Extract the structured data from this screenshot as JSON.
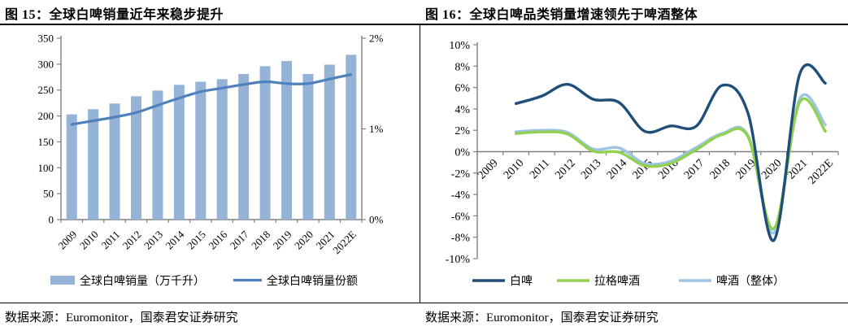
{
  "panels": [
    {
      "title": "图 15：全球白啤销量近年来稳步提升",
      "source": "数据来源：Euromonitor，国泰君安证券研究"
    },
    {
      "title": "图 16：全球白啤品类销量增速领先于啤酒整体",
      "source": "数据来源：Euromonitor，国泰君安证券研究"
    }
  ],
  "chart_data": [
    {
      "type": "bar",
      "title": "全球白啤销量近年来稳步提升",
      "categories": [
        "2009",
        "2010",
        "2011",
        "2012",
        "2013",
        "2014",
        "2015",
        "2016",
        "2017",
        "2018",
        "2019",
        "2020",
        "2021",
        "2022E"
      ],
      "series": [
        {
          "name": "全球白啩销量（万千升）",
          "kind": "bar",
          "axis": "left",
          "color": "#95B3D7",
          "values": [
            203,
            213,
            224,
            238,
            249,
            260,
            266,
            271,
            281,
            296,
            306,
            281,
            299,
            318
          ]
        },
        {
          "name": "全球白啤销量份额",
          "kind": "line",
          "axis": "right",
          "color": "#4F81BD",
          "values": [
            1.05,
            1.09,
            1.13,
            1.18,
            1.26,
            1.34,
            1.41,
            1.45,
            1.49,
            1.52,
            1.5,
            1.5,
            1.55,
            1.6
          ]
        }
      ],
      "legend": [
        {
          "label": "全球白啤销量（万千升）",
          "swatch": "bar",
          "color": "#95B3D7"
        },
        {
          "label": "全球白啤销量份额",
          "swatch": "line",
          "color": "#4F81BD"
        }
      ],
      "left_axis": {
        "min": 0,
        "max": 350,
        "tick_labels": [
          "350",
          "300",
          "250",
          "200",
          "150",
          "100",
          "50",
          "0"
        ]
      },
      "right_axis": {
        "min": 0,
        "max": 2,
        "tick_labels": [
          "2%",
          "1%",
          "0%"
        ]
      },
      "axis_color": "#808080",
      "legend_position": "bottom",
      "grid": false
    },
    {
      "type": "line",
      "title": "全球白啤品类销量增速领先于啤酒整体",
      "categories": [
        "2009",
        "2010",
        "2011",
        "2012",
        "2013",
        "2014",
        "2015",
        "2016",
        "2017",
        "2018",
        "2019",
        "2020",
        "2021",
        "2022E"
      ],
      "series": [
        {
          "name": "白啤",
          "color": "#1F4E79",
          "values": [
            null,
            4.5,
            5.2,
            6.3,
            4.9,
            4.6,
            1.9,
            2.4,
            2.4,
            6.2,
            3.6,
            -8.3,
            7.2,
            6.4
          ]
        },
        {
          "name": "拉格啤酒",
          "color": "#92D050",
          "values": [
            null,
            1.7,
            1.85,
            1.65,
            0.05,
            -0.05,
            -1.3,
            -1.1,
            0.2,
            1.6,
            1.4,
            -7.2,
            4.6,
            1.9
          ]
        },
        {
          "name": "啤酒（整体）",
          "color": "#9DC3E6",
          "values": [
            null,
            1.85,
            2.0,
            1.8,
            0.25,
            0.35,
            -1.1,
            -0.9,
            0.4,
            1.7,
            1.5,
            -7.6,
            4.9,
            2.5
          ]
        }
      ],
      "legend": [
        {
          "label": "白啤",
          "swatch": "line",
          "color": "#1F4E79"
        },
        {
          "label": "拉格啤酒",
          "swatch": "line",
          "color": "#92D050"
        },
        {
          "label": "啤酒（整体）",
          "swatch": "line",
          "color": "#9DC3E6"
        }
      ],
      "y_axis": {
        "min": -10,
        "max": 10,
        "step": 2,
        "tick_labels": [
          "10%",
          "8%",
          "6%",
          "4%",
          "2%",
          "0%",
          "-2%",
          "-4%",
          "-6%",
          "-8%",
          "-10%"
        ]
      },
      "axis_color": "#808080",
      "legend_position": "bottom",
      "grid": false
    }
  ]
}
